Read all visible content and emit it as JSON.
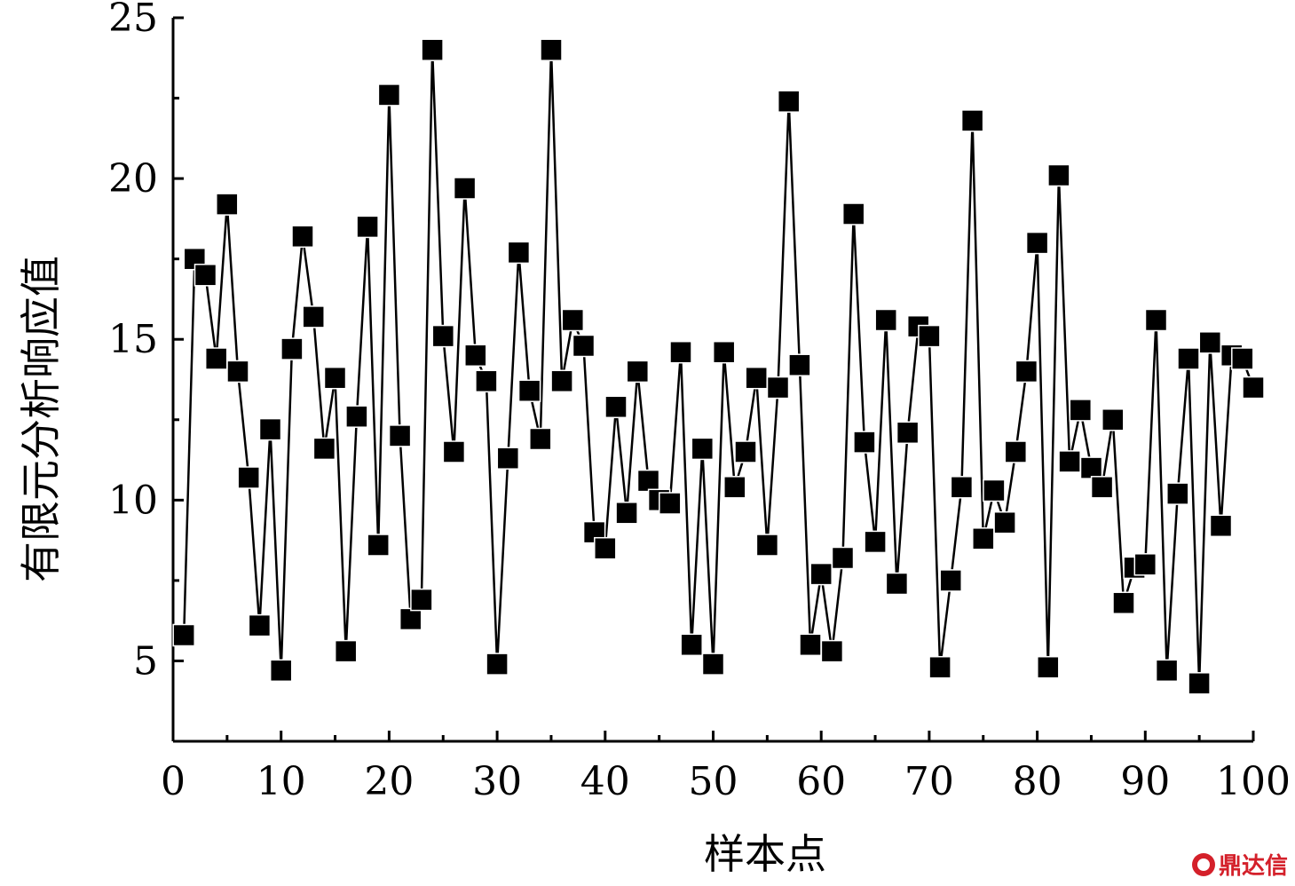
{
  "chart_data": {
    "type": "line",
    "title": "",
    "xlabel": "样本点",
    "ylabel": "有限元分析响应值",
    "xlim": [
      0,
      100
    ],
    "ylim": [
      2.5,
      25
    ],
    "xticks": [
      0,
      10,
      20,
      30,
      40,
      50,
      60,
      70,
      80,
      90,
      100
    ],
    "yticks": [
      5,
      10,
      15,
      20,
      25
    ],
    "grid": false,
    "legend": "none",
    "marker": "filled-square",
    "line_color": "#000000",
    "marker_color": "#000000",
    "series": [
      {
        "x": [
          1,
          2,
          3,
          4,
          5,
          6,
          7,
          8,
          9,
          10,
          11,
          12,
          13,
          14,
          15,
          16,
          17,
          18,
          19,
          20,
          21,
          22,
          23,
          24,
          25,
          26,
          27,
          28,
          29,
          30,
          31,
          32,
          33,
          34,
          35,
          36,
          37,
          38,
          39,
          40,
          41,
          42,
          43,
          44,
          45,
          46,
          47,
          48,
          49,
          50,
          51,
          52,
          53,
          54,
          55,
          56,
          57,
          58,
          59,
          60,
          61,
          62,
          63,
          64,
          65,
          66,
          67,
          68,
          69,
          70,
          71,
          72,
          73,
          74,
          75,
          76,
          77,
          78,
          79,
          80,
          81,
          82,
          83,
          84,
          85,
          86,
          87,
          88,
          89,
          90,
          91,
          92,
          93,
          94,
          95,
          96,
          97,
          98,
          99,
          100
        ],
        "y": [
          5.8,
          17.5,
          17.0,
          14.4,
          19.2,
          14.0,
          10.7,
          6.1,
          12.2,
          4.7,
          14.7,
          18.2,
          15.7,
          11.6,
          13.8,
          5.3,
          12.6,
          18.5,
          8.6,
          22.6,
          12.0,
          6.3,
          6.9,
          24.0,
          15.1,
          11.5,
          19.7,
          14.5,
          13.7,
          4.9,
          11.3,
          17.7,
          13.4,
          11.9,
          24.0,
          13.7,
          15.6,
          14.8,
          9.0,
          8.5,
          12.9,
          9.6,
          14.0,
          10.6,
          10.0,
          9.9,
          14.6,
          5.5,
          11.6,
          4.9,
          14.6,
          10.4,
          11.5,
          13.8,
          8.6,
          13.5,
          22.4,
          14.2,
          5.5,
          7.7,
          5.3,
          8.2,
          18.9,
          11.8,
          8.7,
          15.6,
          7.4,
          12.1,
          15.4,
          15.1,
          4.8,
          7.5,
          10.4,
          21.8,
          8.8,
          10.3,
          9.3,
          11.5,
          14.0,
          18.0,
          4.8,
          20.1,
          11.2,
          12.8,
          11.0,
          10.4,
          12.5,
          6.8,
          7.9,
          8.0,
          15.6,
          4.7,
          10.2,
          14.4,
          4.3,
          14.9,
          9.2,
          14.5,
          14.4,
          13.5
        ]
      }
    ]
  },
  "watermark": {
    "text": "鼎达信",
    "color": "#d4202a"
  }
}
